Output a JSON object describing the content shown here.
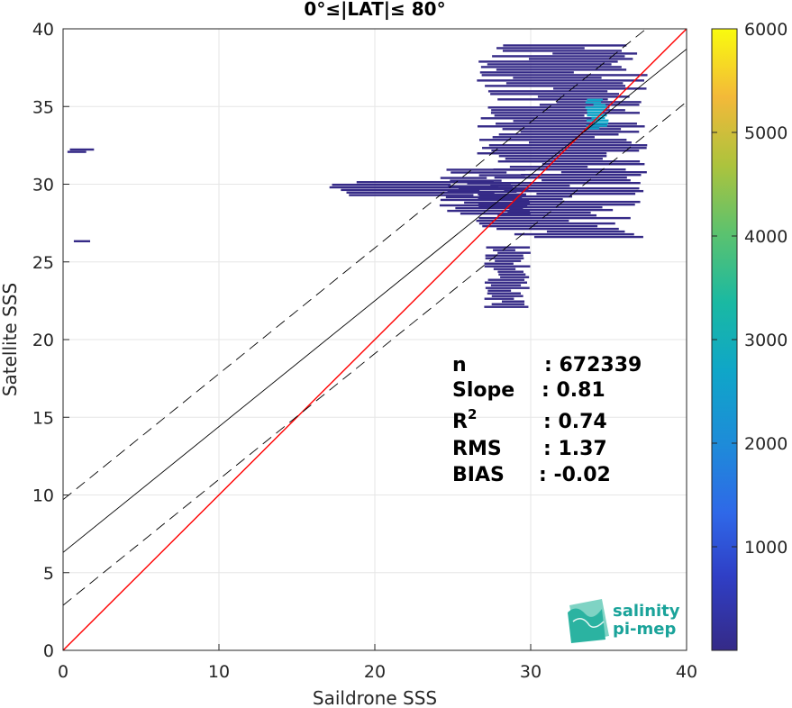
{
  "chart_data": {
    "type": "heatmap",
    "title": "0°≤|LAT|≤ 80°",
    "xlabel": "Saildrone SSS",
    "ylabel": "Satellite SSS",
    "xlim": [
      0,
      40
    ],
    "ylim": [
      0,
      40
    ],
    "xticks": [
      "0",
      "10",
      "20",
      "30",
      "40"
    ],
    "yticks": [
      "0",
      "5",
      "10",
      "15",
      "20",
      "25",
      "30",
      "35",
      "40"
    ],
    "grid": true,
    "colorbar": {
      "range": [
        0,
        6000
      ],
      "ticks": [
        "1000",
        "2000",
        "3000",
        "4000",
        "5000",
        "6000"
      ],
      "colormap": "parula"
    },
    "lines": [
      {
        "name": "1:1",
        "color": "#ff0000",
        "style": "solid",
        "x": [
          0,
          40
        ],
        "y": [
          0,
          40
        ]
      },
      {
        "name": "fit",
        "color": "#000000",
        "style": "solid",
        "x": [
          0,
          40
        ],
        "y": [
          6.3,
          38.7
        ]
      },
      {
        "name": "fit + 2σ",
        "color": "#000000",
        "style": "dashed",
        "x": [
          0,
          40
        ],
        "y": [
          9.7,
          42.1
        ]
      },
      {
        "name": "fit - 2σ",
        "color": "#000000",
        "style": "dashed",
        "x": [
          0,
          40
        ],
        "y": [
          2.9,
          35.3
        ]
      }
    ],
    "density_regions": [
      {
        "x": [
          26.5,
          37.5
        ],
        "y": [
          26.5,
          39.0
        ],
        "level": 400
      },
      {
        "x": [
          24.0,
          30.0
        ],
        "y": [
          28.0,
          31.0
        ],
        "level": 150
      },
      {
        "x": [
          17.0,
          28.0
        ],
        "y": [
          29.2,
          30.2
        ],
        "level": 60
      },
      {
        "x": [
          27.0,
          30.0
        ],
        "y": [
          22.0,
          26.0
        ],
        "level": 120
      },
      {
        "x": [
          33.5,
          35.0
        ],
        "y": [
          33.5,
          35.5
        ],
        "level": 2500
      },
      {
        "x": [
          0.0,
          2.0
        ],
        "y": [
          26.2,
          26.4
        ],
        "level": 100
      },
      {
        "x": [
          0.0,
          2.0
        ],
        "y": [
          32.0,
          32.3
        ],
        "level": 60
      }
    ],
    "annotations": [
      {
        "label": "n",
        "value": ": 672339"
      },
      {
        "label": "Slope",
        "value": ": 0.81"
      },
      {
        "label": "R",
        "sup": "2",
        "value": ": 0.74"
      },
      {
        "label": "RMS",
        "value": ": 1.37"
      },
      {
        "label": "BIAS",
        "value": ": -0.02"
      }
    ]
  },
  "logo": {
    "line1": "salinity",
    "line2": "pi-mep"
  },
  "colors": {
    "one_to_one": "#ff0000",
    "fit": "#000000",
    "grid": "#e6e6e6",
    "logo": "#1aa39a"
  }
}
